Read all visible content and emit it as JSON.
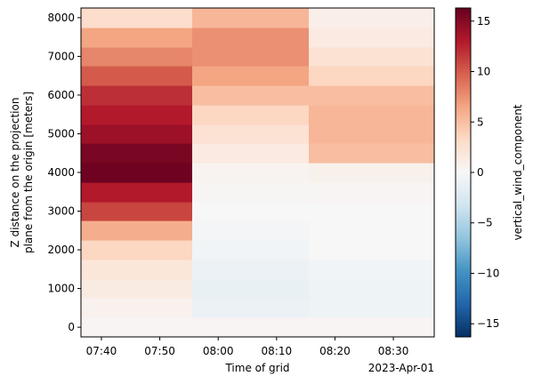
{
  "chart_data": {
    "type": "heatmap",
    "title": "",
    "xlabel": "Time of grid",
    "ylabel_lines": [
      "Z distance on the projection",
      "plane from the origin [meters]"
    ],
    "x_offset_label": "2023-Apr-01",
    "x_ticks": [
      "07:40",
      "07:50",
      "08:00",
      "08:10",
      "08:20",
      "08:30"
    ],
    "x_tick_minutes": [
      460,
      470,
      480,
      490,
      500,
      510
    ],
    "x_range_minutes": [
      456.5,
      517
    ],
    "time_columns": [
      {
        "start": "07:36",
        "end": "07:56"
      },
      {
        "start": "07:56",
        "end": "08:16"
      },
      {
        "start": "08:16",
        "end": "08:36"
      }
    ],
    "time_columns_minutes": [
      [
        456.5,
        475.5
      ],
      [
        475.5,
        495.5
      ],
      [
        495.5,
        517
      ]
    ],
    "y_ticks": [
      0,
      1000,
      2000,
      3000,
      4000,
      5000,
      6000,
      7000,
      8000
    ],
    "y_range": [
      -250,
      8250
    ],
    "z_levels": [
      0,
      500,
      1000,
      1500,
      2000,
      2500,
      3000,
      3500,
      4000,
      4500,
      5000,
      5500,
      6000,
      6500,
      7000,
      7500,
      8000
    ],
    "z_level_half_height": 250,
    "values_by_column": [
      [
        0.3,
        0.7,
        1.4,
        2.0,
        3.5,
        6.0,
        11.0,
        13.0,
        16.0,
        15.5,
        14.0,
        13.0,
        12.0,
        10.0,
        8.0,
        6.5,
        3.0
      ],
      [
        0.3,
        -1.0,
        -1.3,
        -1.0,
        -0.5,
        -0.3,
        0.0,
        0.2,
        0.5,
        1.5,
        2.5,
        3.5,
        5.0,
        6.5,
        7.5,
        7.5,
        5.5
      ],
      [
        0.3,
        -0.8,
        -0.8,
        -0.5,
        0.0,
        0.0,
        0.0,
        0.3,
        0.8,
        5.0,
        5.5,
        5.5,
        5.0,
        3.5,
        2.5,
        1.5,
        1.0
      ]
    ],
    "colorbar": {
      "label": "vertical_wind_component",
      "colormap": "RdBu_r",
      "vmin": -16.3,
      "vmax": 16.3,
      "ticks": [
        -15,
        -10,
        -5,
        0,
        5,
        10,
        15
      ],
      "tick_labels": [
        "−15",
        "−10",
        "−5",
        "0",
        "5",
        "10",
        "15"
      ]
    },
    "grid": false,
    "legend": "none"
  }
}
